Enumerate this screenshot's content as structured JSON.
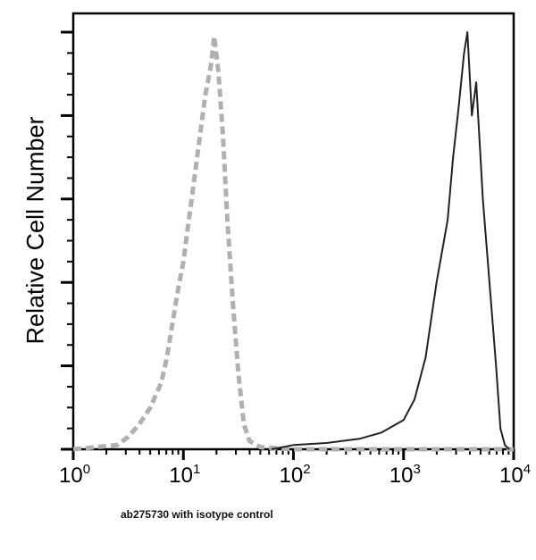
{
  "chart_data": {
    "type": "line",
    "title": "",
    "xlabel": "",
    "ylabel": "Relative Cell Number",
    "x_scale": "log10",
    "xlim": [
      1,
      10000
    ],
    "ylim": [
      0,
      104.5
    ],
    "x_ticks": [
      {
        "base": "10",
        "exp": "0"
      },
      {
        "base": "10",
        "exp": "1"
      },
      {
        "base": "10",
        "exp": "2"
      },
      {
        "base": "10",
        "exp": "3"
      },
      {
        "base": "10",
        "exp": "4"
      }
    ],
    "y_major_ticks": [
      0,
      20,
      40,
      60,
      80,
      100
    ],
    "grid": false,
    "caption": "ab275730 with isotype control",
    "series": [
      {
        "name": "isotype control",
        "style": "dashed",
        "color": "#b0b0b0",
        "log10_x": [
          0,
          0.2,
          0.4,
          0.5,
          0.6,
          0.7,
          0.75,
          0.8,
          0.85,
          0.9,
          0.95,
          1.0,
          1.05,
          1.1,
          1.15,
          1.2,
          1.25,
          1.28,
          1.32,
          1.36,
          1.4,
          1.45,
          1.5,
          1.55,
          1.6,
          1.7,
          2.0,
          2.5,
          3.0,
          3.5,
          4.0
        ],
        "y": [
          0,
          0.5,
          1,
          3,
          6,
          10,
          13,
          16,
          22,
          30,
          38,
          45,
          55,
          65,
          75,
          85,
          92,
          99,
          90,
          75,
          55,
          35,
          18,
          6,
          2,
          0.5,
          0,
          0,
          0,
          0,
          0
        ]
      },
      {
        "name": "ab275730",
        "style": "solid",
        "color": "#222222",
        "log10_x": [
          1.8,
          2.0,
          2.3,
          2.6,
          2.8,
          3.0,
          3.1,
          3.2,
          3.3,
          3.4,
          3.45,
          3.5,
          3.55,
          3.58,
          3.62,
          3.66,
          3.72,
          3.78,
          3.84,
          3.88,
          3.92,
          3.96
        ],
        "y": [
          0,
          1,
          1.5,
          2.5,
          4,
          7,
          12,
          22,
          40,
          55,
          70,
          82,
          95,
          100,
          80,
          88,
          60,
          40,
          20,
          5,
          1,
          0
        ]
      }
    ]
  }
}
